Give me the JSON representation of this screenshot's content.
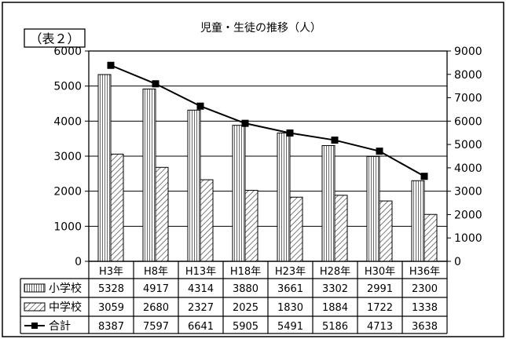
{
  "chart_data": {
    "type": "bar",
    "table_label": "（表２）",
    "title": "児童・生徒の推移（人）",
    "categories": [
      "H3年",
      "H8年",
      "H13年",
      "H18年",
      "H23年",
      "H28年",
      "H30年",
      "H36年"
    ],
    "series": [
      {
        "name": "小学校",
        "kind": "bar",
        "pattern": "vertical-lines",
        "axis": "left",
        "values": [
          5328,
          4917,
          4314,
          3880,
          3661,
          3302,
          2991,
          2300
        ]
      },
      {
        "name": "中学校",
        "kind": "bar",
        "pattern": "diagonal-hatch",
        "axis": "left",
        "values": [
          3059,
          2680,
          2327,
          2025,
          1830,
          1884,
          1722,
          1338
        ]
      },
      {
        "name": "合計",
        "kind": "line",
        "marker": "square",
        "axis": "right",
        "values": [
          8387,
          7597,
          6641,
          5905,
          5491,
          5186,
          4713,
          3638
        ]
      }
    ],
    "y_left": {
      "min": 0,
      "max": 6000,
      "ticks": [
        "0",
        "1000",
        "2000",
        "3000",
        "4000",
        "5000",
        "6000"
      ]
    },
    "y_right": {
      "min": 0,
      "max": 9000,
      "ticks": [
        "0",
        "1000",
        "2000",
        "3000",
        "4000",
        "5000",
        "6000",
        "7000",
        "8000",
        "9000"
      ]
    },
    "grid": "horizontal",
    "legend": "data-table"
  }
}
